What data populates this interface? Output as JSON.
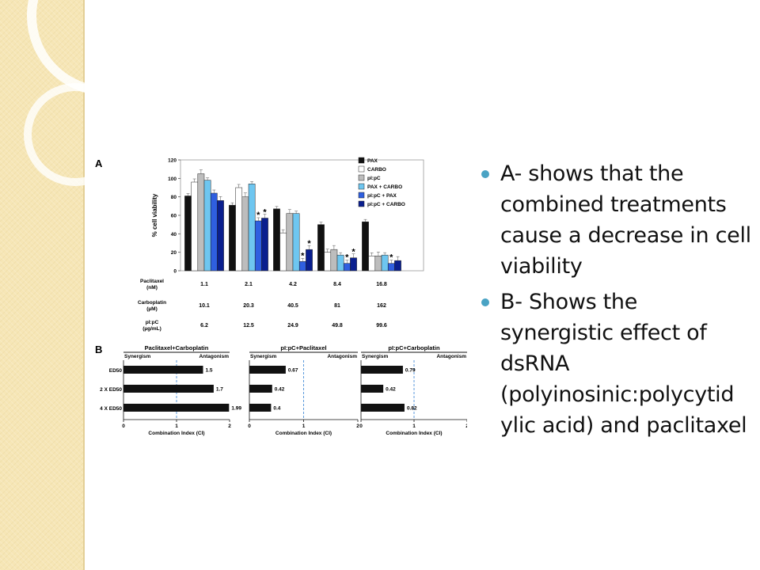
{
  "slide": {
    "bullets": [
      "A- shows that the combined treatments cause a decrease in cell viability",
      "B- Shows the synergistic effect of dsRNA (polyinosinic:polycytid ylic acid) and paclitaxel"
    ],
    "bullet_color": "#4aa3c4"
  },
  "panel_a": {
    "label": "A",
    "ylabel": "% cell viability",
    "row_labels": [
      "Paclitaxel\n(nM)",
      "Carboplatin\n(µM)",
      "pI:pC\n(µg/mL)"
    ],
    "paclitaxel": [
      "1.1",
      "2.1",
      "4.2",
      "8.4",
      "16.8"
    ],
    "carboplatin": [
      "10.1",
      "20.3",
      "40.5",
      "81",
      "162"
    ],
    "pipc": [
      "6.2",
      "12.5",
      "24.9",
      "49.8",
      "99.6"
    ]
  },
  "panel_b": {
    "label": "B",
    "row_labels": [
      "ED50",
      "2 X ED50",
      "4 X ED50"
    ],
    "synergism": "Synergism",
    "antagonism": "Antagonism",
    "xlabel": "Combination Index (CI)"
  },
  "chart_data": [
    {
      "type": "bar",
      "panel": "A",
      "categories": [
        "1.1",
        "2.1",
        "4.2",
        "8.4",
        "16.8"
      ],
      "ylabel": "% cell viability",
      "ylim": [
        0,
        120
      ],
      "yticks": [
        0,
        20,
        40,
        60,
        80,
        100,
        120
      ],
      "series": [
        {
          "name": "PAX",
          "color": "#111111",
          "values": [
            81,
            71,
            67,
            50,
            53
          ]
        },
        {
          "name": "CARBO",
          "color": "#ffffff",
          "values": [
            96,
            90,
            41,
            20,
            16
          ]
        },
        {
          "name": "pI:pC",
          "color": "#bdbdbd",
          "values": [
            105,
            80,
            62,
            23,
            16
          ]
        },
        {
          "name": "PAX + CARBO",
          "color": "#6ec6f0",
          "values": [
            98,
            94,
            62,
            17,
            17
          ]
        },
        {
          "name": "pI:pC + PAX",
          "color": "#2f5fe0",
          "values": [
            84,
            54,
            10,
            8,
            8
          ]
        },
        {
          "name": "pI:pC + CARBO",
          "color": "#0a1f8f",
          "values": [
            76,
            57,
            23,
            14,
            11
          ]
        }
      ],
      "significance_markers": [
        {
          "category": "2.1",
          "series": "pI:pC + PAX",
          "label": "*"
        },
        {
          "category": "2.1",
          "series": "pI:pC + CARBO",
          "label": "*"
        },
        {
          "category": "4.2",
          "series": "pI:pC + PAX",
          "label": "*"
        },
        {
          "category": "4.2",
          "series": "pI:pC + CARBO",
          "label": "*"
        },
        {
          "category": "8.4",
          "series": "pI:pC + PAX",
          "label": "*"
        },
        {
          "category": "8.4",
          "series": "pI:pC + CARBO",
          "label": "*"
        },
        {
          "category": "16.8",
          "series": "pI:pC + PAX",
          "label": "*"
        }
      ],
      "legend": "top-right"
    },
    {
      "type": "bar",
      "orientation": "horizontal",
      "panel": "B",
      "title": "Paclitaxel+Carboplatin",
      "categories": [
        "ED50",
        "2 X ED50",
        "4 X ED50"
      ],
      "values": [
        1.5,
        1.7,
        1.99
      ],
      "value_labels": [
        "1.5",
        "1.7",
        "1.99"
      ],
      "xlim": [
        0,
        2
      ],
      "xticks": [
        0,
        1,
        2
      ],
      "reference_line": 1,
      "xlabel": "Combination Index (CI)"
    },
    {
      "type": "bar",
      "orientation": "horizontal",
      "panel": "B",
      "title": "pI:pC+Paclitaxel",
      "categories": [
        "ED50",
        "2 X ED50",
        "4 X ED50"
      ],
      "values": [
        0.67,
        0.42,
        0.4
      ],
      "value_labels": [
        "0.67",
        "0.42",
        "0.4"
      ],
      "xlim": [
        0,
        2
      ],
      "xticks": [
        0,
        1,
        2
      ],
      "reference_line": 1,
      "xlabel": "Combination Index (CI)"
    },
    {
      "type": "bar",
      "orientation": "horizontal",
      "panel": "B",
      "title": "pI:pC+Carboplatin",
      "categories": [
        "ED50",
        "2 X ED50",
        "4 X ED50"
      ],
      "values": [
        0.79,
        0.42,
        0.82
      ],
      "value_labels": [
        "0.79",
        "0.42",
        "0.82"
      ],
      "xlim": [
        0,
        2
      ],
      "xticks": [
        0,
        1,
        2
      ],
      "reference_line": 1,
      "xlabel": "Combination Index (CI)"
    }
  ]
}
